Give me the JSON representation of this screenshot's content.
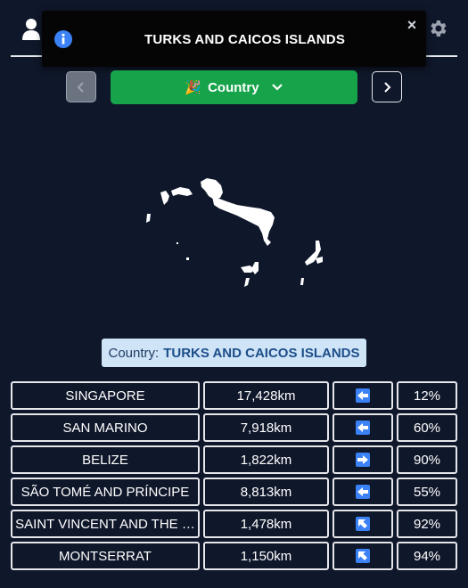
{
  "toast": {
    "message": "TURKS AND CAICOS ISLANDS",
    "close_label": "×",
    "icon": "info-icon"
  },
  "header": {
    "user_icon": "user-icon",
    "settings_icon": "gear-icon"
  },
  "mode_selector": {
    "emoji": "🎉",
    "label": "Country",
    "prev_icon": "chevron-left-icon",
    "next_icon": "chevron-right-icon"
  },
  "answer": {
    "prefix": "Country:",
    "name": "TURKS AND CAICOS ISLANDS"
  },
  "colors": {
    "background": "#0f172a",
    "button_green": "#16a34a",
    "label_bg": "#cfe4f7",
    "direction_blue": "#3b82f6"
  },
  "guesses": [
    {
      "country": "SINGAPORE",
      "distance": "17,428km",
      "direction": "left-arrow-icon",
      "proximity": "12%"
    },
    {
      "country": "SAN MARINO",
      "distance": "7,918km",
      "direction": "left-arrow-icon",
      "proximity": "60%"
    },
    {
      "country": "BELIZE",
      "distance": "1,822km",
      "direction": "right-arrow-icon",
      "proximity": "90%"
    },
    {
      "country": "SÃO TOMÉ AND PRÍNCIPE",
      "distance": "8,813km",
      "direction": "left-arrow-icon",
      "proximity": "55%"
    },
    {
      "country": "SAINT VINCENT AND THE …",
      "distance": "1,478km",
      "direction": "up-left-arrow-icon",
      "proximity": "92%"
    },
    {
      "country": "MONTSERRAT",
      "distance": "1,150km",
      "direction": "up-left-arrow-icon",
      "proximity": "94%"
    }
  ]
}
